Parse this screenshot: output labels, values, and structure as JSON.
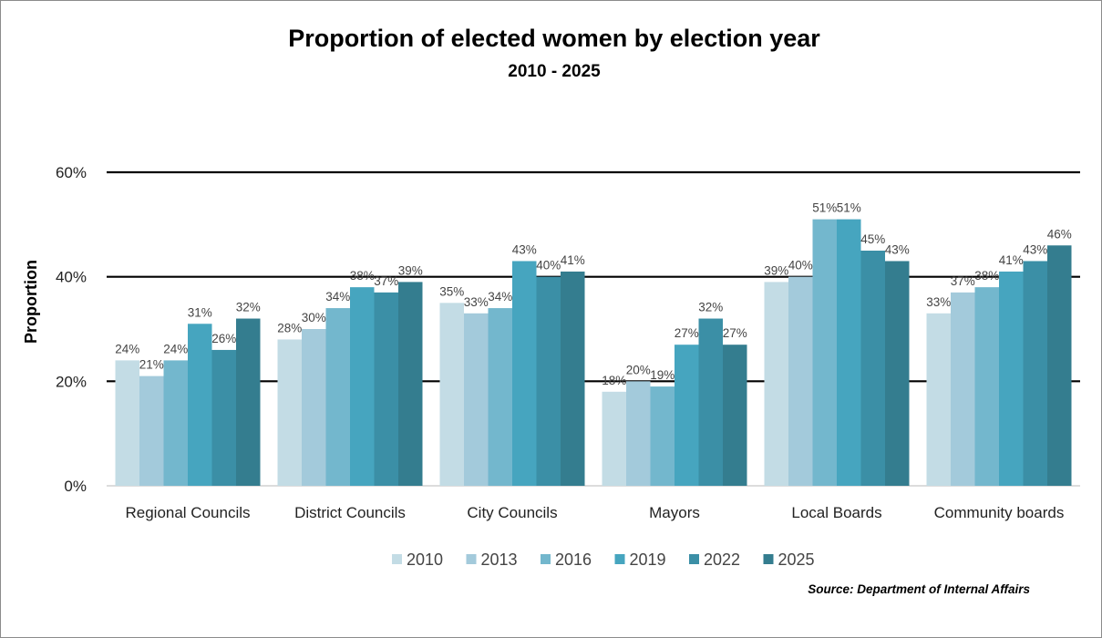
{
  "chart_data": {
    "type": "bar",
    "title": "Proportion of elected women by election year",
    "subtitle": "2010 - 2025",
    "xlabel": "",
    "ylabel": "Proportion",
    "ylim": [
      0,
      60
    ],
    "yticks": [
      "0%",
      "20%",
      "40%",
      "60%"
    ],
    "ytick_values": [
      0,
      20,
      40,
      60
    ],
    "grid": true,
    "legend_position": "bottom",
    "categories": [
      "Regional Councils",
      "District Councils",
      "City Councils",
      "Mayors",
      "Local Boards",
      "Community boards"
    ],
    "series": [
      {
        "name": "2010",
        "color": "#c3dce5",
        "values": [
          24,
          28,
          35,
          18,
          39,
          33
        ]
      },
      {
        "name": "2013",
        "color": "#a3cadb",
        "values": [
          21,
          30,
          33,
          20,
          40,
          37
        ]
      },
      {
        "name": "2016",
        "color": "#73b7cd",
        "values": [
          24,
          34,
          34,
          19,
          51,
          38
        ]
      },
      {
        "name": "2019",
        "color": "#46a5bf",
        "values": [
          31,
          38,
          43,
          27,
          51,
          41
        ]
      },
      {
        "name": "2022",
        "color": "#3b8fa6",
        "values": [
          26,
          37,
          40,
          32,
          45,
          43
        ]
      },
      {
        "name": "2025",
        "color": "#347d8f",
        "values": [
          32,
          39,
          41,
          27,
          43,
          46
        ]
      }
    ],
    "source": "Source: Department of Internal Affairs"
  }
}
